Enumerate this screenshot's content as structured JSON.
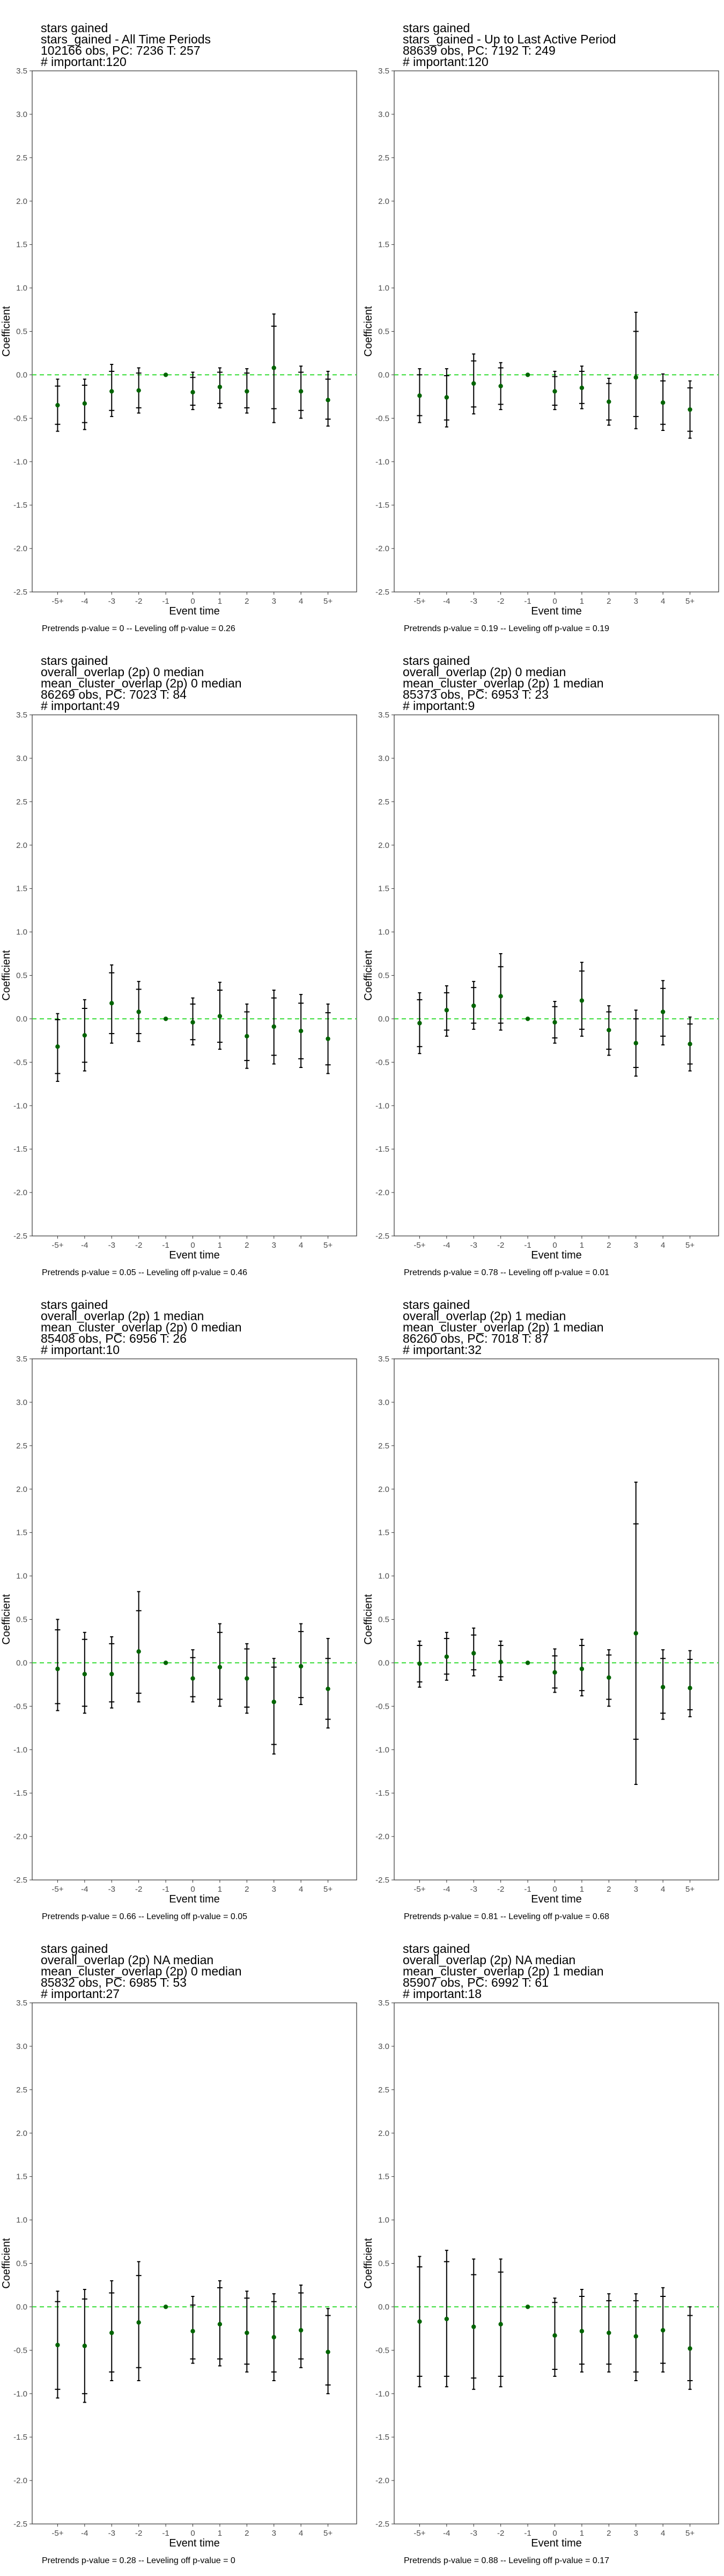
{
  "chart_data": [
    {
      "type": "scatter",
      "title_lines": [
        "stars gained",
        "stars_gained - All Time Periods",
        "102166 obs, PC: 7236 T: 257",
        "# important:120"
      ],
      "caption": "Pretrends p-value = 0 -- Leveling off p-value = 0.26",
      "xlabel": "Event time",
      "ylabel": "Coefficient",
      "categories": [
        "-5+",
        "-4",
        "-3",
        "-2",
        "-1",
        "0",
        "1",
        "2",
        "3",
        "4",
        "5+"
      ],
      "ylim": [
        -2.5,
        3.5
      ],
      "yticks": [
        "-2.5",
        "-2.0",
        "-1.5",
        "-1.0",
        "-0.5",
        "0.0",
        "0.5",
        "1.0",
        "1.5",
        "2.0",
        "2.5",
        "3.0",
        "3.5"
      ],
      "reference_line": 0,
      "values": [
        -0.35,
        -0.33,
        -0.19,
        -0.18,
        0,
        -0.2,
        -0.14,
        -0.19,
        0.08,
        -0.19,
        -0.29
      ],
      "ci95_low": [
        -0.65,
        -0.63,
        -0.48,
        -0.44,
        0,
        -0.4,
        -0.38,
        -0.44,
        -0.55,
        -0.5,
        -0.59
      ],
      "ci95_high": [
        -0.05,
        -0.05,
        0.12,
        0.08,
        0,
        0.03,
        0.08,
        0.07,
        0.7,
        0.1,
        0.04
      ],
      "ci90_low": [
        -0.57,
        -0.55,
        -0.41,
        -0.38,
        0,
        -0.35,
        -0.33,
        -0.38,
        -0.39,
        -0.41,
        -0.51
      ],
      "ci90_high": [
        -0.13,
        -0.12,
        0.04,
        0.02,
        0,
        -0.03,
        0.03,
        0.02,
        0.56,
        0.03,
        -0.05
      ]
    },
    {
      "type": "scatter",
      "title_lines": [
        "stars gained",
        "stars_gained - Up to Last Active Period",
        "88639 obs, PC: 7192 T: 249",
        "# important:120"
      ],
      "caption": "Pretrends p-value = 0.19 -- Leveling off p-value = 0.19",
      "xlabel": "Event time",
      "ylabel": "Coefficient",
      "categories": [
        "-5+",
        "-4",
        "-3",
        "-2",
        "-1",
        "0",
        "1",
        "2",
        "3",
        "4",
        "5+"
      ],
      "ylim": [
        -2.5,
        3.5
      ],
      "yticks": [
        "-2.5",
        "-2.0",
        "-1.5",
        "-1.0",
        "-0.5",
        "0.0",
        "0.5",
        "1.0",
        "1.5",
        "2.0",
        "2.5",
        "3.0",
        "3.5"
      ],
      "reference_line": 0,
      "values": [
        -0.24,
        -0.26,
        -0.1,
        -0.13,
        0,
        -0.19,
        -0.15,
        -0.31,
        -0.03,
        -0.32,
        -0.4
      ],
      "ci95_low": [
        -0.55,
        -0.6,
        -0.45,
        -0.4,
        0,
        -0.4,
        -0.39,
        -0.58,
        -0.62,
        -0.64,
        -0.73
      ],
      "ci95_high": [
        0.07,
        0.07,
        0.24,
        0.14,
        0,
        0.04,
        0.1,
        -0.04,
        0.72,
        0.01,
        -0.07
      ],
      "ci90_low": [
        -0.47,
        -0.52,
        -0.37,
        -0.34,
        0,
        -0.35,
        -0.33,
        -0.52,
        -0.48,
        -0.57,
        -0.65
      ],
      "ci90_high": [
        0.0,
        -0.01,
        0.16,
        0.08,
        0,
        -0.02,
        0.04,
        -0.1,
        0.5,
        -0.07,
        -0.15
      ]
    },
    {
      "type": "scatter",
      "title_lines": [
        "stars gained",
        "overall_overlap (2p) 0 median",
        "mean_cluster_overlap (2p) 0 median",
        "86269 obs, PC: 7023 T: 84",
        "# important:49"
      ],
      "caption": "Pretrends p-value = 0.05 -- Leveling off p-value = 0.46",
      "xlabel": "Event time",
      "ylabel": "Coefficient",
      "categories": [
        "-5+",
        "-4",
        "-3",
        "-2",
        "-1",
        "0",
        "1",
        "2",
        "3",
        "4",
        "5+"
      ],
      "ylim": [
        -2.5,
        3.5
      ],
      "yticks": [
        "-2.5",
        "-2.0",
        "-1.5",
        "-1.0",
        "-0.5",
        "0.0",
        "0.5",
        "1.0",
        "1.5",
        "2.0",
        "2.5",
        "3.0",
        "3.5"
      ],
      "reference_line": 0,
      "values": [
        -0.32,
        -0.19,
        0.18,
        0.08,
        0,
        -0.04,
        0.03,
        -0.2,
        -0.09,
        -0.14,
        -0.23
      ],
      "ci95_low": [
        -0.72,
        -0.6,
        -0.28,
        -0.26,
        0,
        -0.3,
        -0.35,
        -0.57,
        -0.52,
        -0.56,
        -0.63
      ],
      "ci95_high": [
        0.06,
        0.22,
        0.62,
        0.43,
        0,
        0.24,
        0.42,
        0.17,
        0.33,
        0.28,
        0.17
      ],
      "ci90_low": [
        -0.63,
        -0.5,
        -0.17,
        -0.17,
        0,
        -0.24,
        -0.27,
        -0.48,
        -0.42,
        -0.46,
        -0.53
      ],
      "ci90_high": [
        -0.01,
        0.12,
        0.53,
        0.34,
        0,
        0.17,
        0.33,
        0.08,
        0.24,
        0.18,
        0.07
      ]
    },
    {
      "type": "scatter",
      "title_lines": [
        "stars gained",
        "overall_overlap (2p) 0 median",
        "mean_cluster_overlap (2p) 1 median",
        "85373 obs, PC: 6953 T: 23",
        "# important:9"
      ],
      "caption": "Pretrends p-value = 0.78 -- Leveling off p-value = 0.01",
      "xlabel": "Event time",
      "ylabel": "Coefficient",
      "categories": [
        "-5+",
        "-4",
        "-3",
        "-2",
        "-1",
        "0",
        "1",
        "2",
        "3",
        "4",
        "5+"
      ],
      "ylim": [
        -2.5,
        3.5
      ],
      "yticks": [
        "-2.5",
        "-2.0",
        "-1.5",
        "-1.0",
        "-0.5",
        "0.0",
        "0.5",
        "1.0",
        "1.5",
        "2.0",
        "2.5",
        "3.0",
        "3.5"
      ],
      "reference_line": 0,
      "values": [
        -0.05,
        0.1,
        0.15,
        0.26,
        0,
        -0.04,
        0.21,
        -0.13,
        -0.28,
        0.08,
        -0.29
      ],
      "ci95_low": [
        -0.4,
        -0.2,
        -0.12,
        -0.13,
        0,
        -0.28,
        -0.2,
        -0.42,
        -0.66,
        -0.3,
        -0.6
      ],
      "ci95_high": [
        0.3,
        0.38,
        0.43,
        0.75,
        0,
        0.2,
        0.65,
        0.15,
        0.1,
        0.44,
        0.02
      ],
      "ci90_low": [
        -0.32,
        -0.13,
        -0.05,
        -0.05,
        0,
        -0.22,
        -0.12,
        -0.35,
        -0.56,
        -0.2,
        -0.52
      ],
      "ci90_high": [
        0.22,
        0.3,
        0.36,
        0.6,
        0,
        0.14,
        0.55,
        0.08,
        0.0,
        0.35,
        -0.06
      ]
    },
    {
      "type": "scatter",
      "title_lines": [
        "stars gained",
        "overall_overlap (2p) 1 median",
        "mean_cluster_overlap (2p) 0 median",
        "85408 obs, PC: 6956 T: 26",
        "# important:10"
      ],
      "caption": "Pretrends p-value = 0.66 -- Leveling off p-value = 0.05",
      "xlabel": "Event time",
      "ylabel": "Coefficient",
      "categories": [
        "-5+",
        "-4",
        "-3",
        "-2",
        "-1",
        "0",
        "1",
        "2",
        "3",
        "4",
        "5+"
      ],
      "ylim": [
        -2.5,
        3.5
      ],
      "yticks": [
        "-2.5",
        "-2.0",
        "-1.5",
        "-1.0",
        "-0.5",
        "0.0",
        "0.5",
        "1.0",
        "1.5",
        "2.0",
        "2.5",
        "3.0",
        "3.5"
      ],
      "reference_line": 0,
      "values": [
        -0.07,
        -0.13,
        -0.13,
        0.13,
        0,
        -0.18,
        -0.05,
        -0.18,
        -0.45,
        -0.04,
        -0.3
      ],
      "ci95_low": [
        -0.55,
        -0.58,
        -0.52,
        -0.45,
        0,
        -0.45,
        -0.5,
        -0.58,
        -1.05,
        -0.48,
        -0.75
      ],
      "ci95_high": [
        0.5,
        0.35,
        0.3,
        0.82,
        0,
        0.15,
        0.45,
        0.22,
        0.05,
        0.45,
        0.28
      ],
      "ci90_low": [
        -0.47,
        -0.5,
        -0.45,
        -0.35,
        0,
        -0.39,
        -0.42,
        -0.51,
        -0.94,
        -0.4,
        -0.65
      ],
      "ci90_high": [
        0.38,
        0.27,
        0.22,
        0.6,
        0,
        0.06,
        0.35,
        0.16,
        -0.05,
        0.36,
        0.05
      ]
    },
    {
      "type": "scatter",
      "title_lines": [
        "stars gained",
        "overall_overlap (2p) 1 median",
        "mean_cluster_overlap (2p) 1 median",
        "86260 obs, PC: 7018 T: 87",
        "# important:32"
      ],
      "caption": "Pretrends p-value = 0.81 -- Leveling off p-value = 0.68",
      "xlabel": "Event time",
      "ylabel": "Coefficient",
      "categories": [
        "-5+",
        "-4",
        "-3",
        "-2",
        "-1",
        "0",
        "1",
        "2",
        "3",
        "4",
        "5+"
      ],
      "ylim": [
        -2.5,
        3.5
      ],
      "yticks": [
        "-2.5",
        "-2.0",
        "-1.5",
        "-1.0",
        "-0.5",
        "0.0",
        "0.5",
        "1.0",
        "1.5",
        "2.0",
        "2.5",
        "3.0",
        "3.5"
      ],
      "reference_line": 0,
      "values": [
        -0.01,
        0.07,
        0.11,
        0.01,
        0,
        -0.11,
        -0.07,
        -0.17,
        0.34,
        -0.28,
        -0.29
      ],
      "ci95_low": [
        -0.28,
        -0.2,
        -0.15,
        -0.2,
        0,
        -0.34,
        -0.38,
        -0.5,
        -1.4,
        -0.65,
        -0.62
      ],
      "ci95_high": [
        0.25,
        0.35,
        0.4,
        0.25,
        0,
        0.16,
        0.27,
        0.15,
        2.08,
        0.15,
        0.14
      ],
      "ci90_low": [
        -0.22,
        -0.13,
        -0.08,
        -0.16,
        0,
        -0.29,
        -0.32,
        -0.42,
        -0.88,
        -0.58,
        -0.54
      ],
      "ci90_high": [
        0.2,
        0.28,
        0.32,
        0.2,
        0,
        0.08,
        0.2,
        0.09,
        1.6,
        0.05,
        0.04
      ]
    },
    {
      "type": "scatter",
      "title_lines": [
        "stars gained",
        "overall_overlap (2p) NA median",
        "mean_cluster_overlap (2p) 0 median",
        "85832 obs, PC: 6985 T: 53",
        "# important:27"
      ],
      "caption": "Pretrends p-value = 0.28 -- Leveling off p-value = 0",
      "xlabel": "Event time",
      "ylabel": "Coefficient",
      "categories": [
        "-5+",
        "-4",
        "-3",
        "-2",
        "-1",
        "0",
        "1",
        "2",
        "3",
        "4",
        "5+"
      ],
      "ylim": [
        -2.5,
        3.5
      ],
      "yticks": [
        "-2.5",
        "-2.0",
        "-1.5",
        "-1.0",
        "-0.5",
        "0.0",
        "0.5",
        "1.0",
        "1.5",
        "2.0",
        "2.5",
        "3.0",
        "3.5"
      ],
      "reference_line": 0,
      "values": [
        -0.44,
        -0.45,
        -0.3,
        -0.18,
        0,
        -0.28,
        -0.2,
        -0.3,
        -0.35,
        -0.27,
        -0.52
      ],
      "ci95_low": [
        -1.05,
        -1.1,
        -0.85,
        -0.85,
        0,
        -0.65,
        -0.68,
        -0.75,
        -0.85,
        -0.7,
        -1.0
      ],
      "ci95_high": [
        0.18,
        0.2,
        0.3,
        0.52,
        0,
        0.12,
        0.3,
        0.18,
        0.15,
        0.25,
        -0.02
      ],
      "ci90_low": [
        -0.95,
        -1.0,
        -0.75,
        -0.7,
        0,
        -0.6,
        -0.6,
        -0.66,
        -0.75,
        -0.6,
        -0.9
      ],
      "ci90_high": [
        0.06,
        0.09,
        0.16,
        0.36,
        0,
        0.02,
        0.22,
        0.1,
        0.06,
        0.16,
        -0.1
      ]
    },
    {
      "type": "scatter",
      "title_lines": [
        "stars gained",
        "overall_overlap (2p) NA median",
        "mean_cluster_overlap (2p) 1 median",
        "85907 obs, PC: 6992 T: 61",
        "# important:18"
      ],
      "caption": "Pretrends p-value = 0.88 -- Leveling off p-value = 0.17",
      "xlabel": "Event time",
      "ylabel": "Coefficient",
      "categories": [
        "-5+",
        "-4",
        "-3",
        "-2",
        "-1",
        "0",
        "1",
        "2",
        "3",
        "4",
        "5+"
      ],
      "ylim": [
        -2.5,
        3.5
      ],
      "yticks": [
        "-2.5",
        "-2.0",
        "-1.5",
        "-1.0",
        "-0.5",
        "0.0",
        "0.5",
        "1.0",
        "1.5",
        "2.0",
        "2.5",
        "3.0",
        "3.5"
      ],
      "reference_line": 0,
      "values": [
        -0.17,
        -0.14,
        -0.23,
        -0.2,
        0,
        -0.33,
        -0.28,
        -0.3,
        -0.34,
        -0.27,
        -0.48
      ],
      "ci95_low": [
        -0.92,
        -0.92,
        -0.95,
        -0.92,
        0,
        -0.8,
        -0.75,
        -0.75,
        -0.85,
        -0.75,
        -0.95
      ],
      "ci95_high": [
        0.58,
        0.65,
        0.55,
        0.55,
        0,
        0.1,
        0.2,
        0.15,
        0.15,
        0.22,
        0.0
      ],
      "ci90_low": [
        -0.8,
        -0.8,
        -0.82,
        -0.8,
        0,
        -0.72,
        -0.66,
        -0.66,
        -0.75,
        -0.65,
        -0.85
      ],
      "ci90_high": [
        0.46,
        0.52,
        0.37,
        0.4,
        0,
        0.05,
        0.12,
        0.07,
        0.07,
        0.12,
        -0.1
      ]
    }
  ],
  "colors": {
    "point": "#006400",
    "reference_line": "#33dd33",
    "error_bar": "#000000",
    "panel_border": "#333333",
    "tick_label": "#4d4d4d"
  }
}
